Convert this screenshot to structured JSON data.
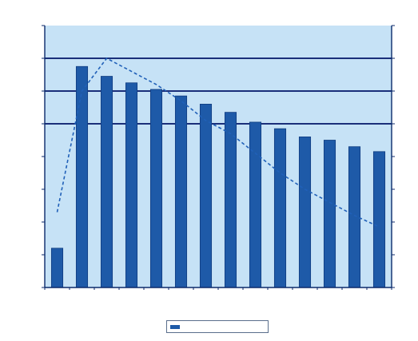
{
  "chart_data": {
    "type": "bar",
    "title": "",
    "xlabel": "",
    "ylabel": "",
    "categories": [
      "",
      "",
      "",
      "",
      "",
      "",
      "",
      "",
      "",
      "",
      "",
      "",
      "",
      ""
    ],
    "series": [
      {
        "values": [
          1.44,
          2.55,
          2.49,
          2.45,
          2.41,
          2.37,
          2.32,
          2.27,
          2.21,
          2.17,
          2.12,
          2.1,
          2.06,
          2.03
        ]
      }
    ],
    "line_values": [
      5.3,
      9.0,
      10.0,
      9.6,
      9.2,
      8.7,
      8.1,
      7.7,
      7.1,
      6.5,
      6.0,
      5.6,
      5.2,
      4.85
    ],
    "ylim": [
      1.2,
      2.8
    ],
    "y2lim": [
      3.0,
      11.0
    ],
    "ref_lines": [
      2.6,
      2.4,
      2.2
    ],
    "legend": {
      "position": "bottom",
      "label": ""
    },
    "colors": {
      "plot_bg": "#c6e2f6",
      "bar": "#1e5aa8",
      "bar_edge": "#0f3c80",
      "line": "#2060b8",
      "ref_line": "#1a2f7a",
      "axis": "#0b2a6b"
    },
    "grid": false
  }
}
